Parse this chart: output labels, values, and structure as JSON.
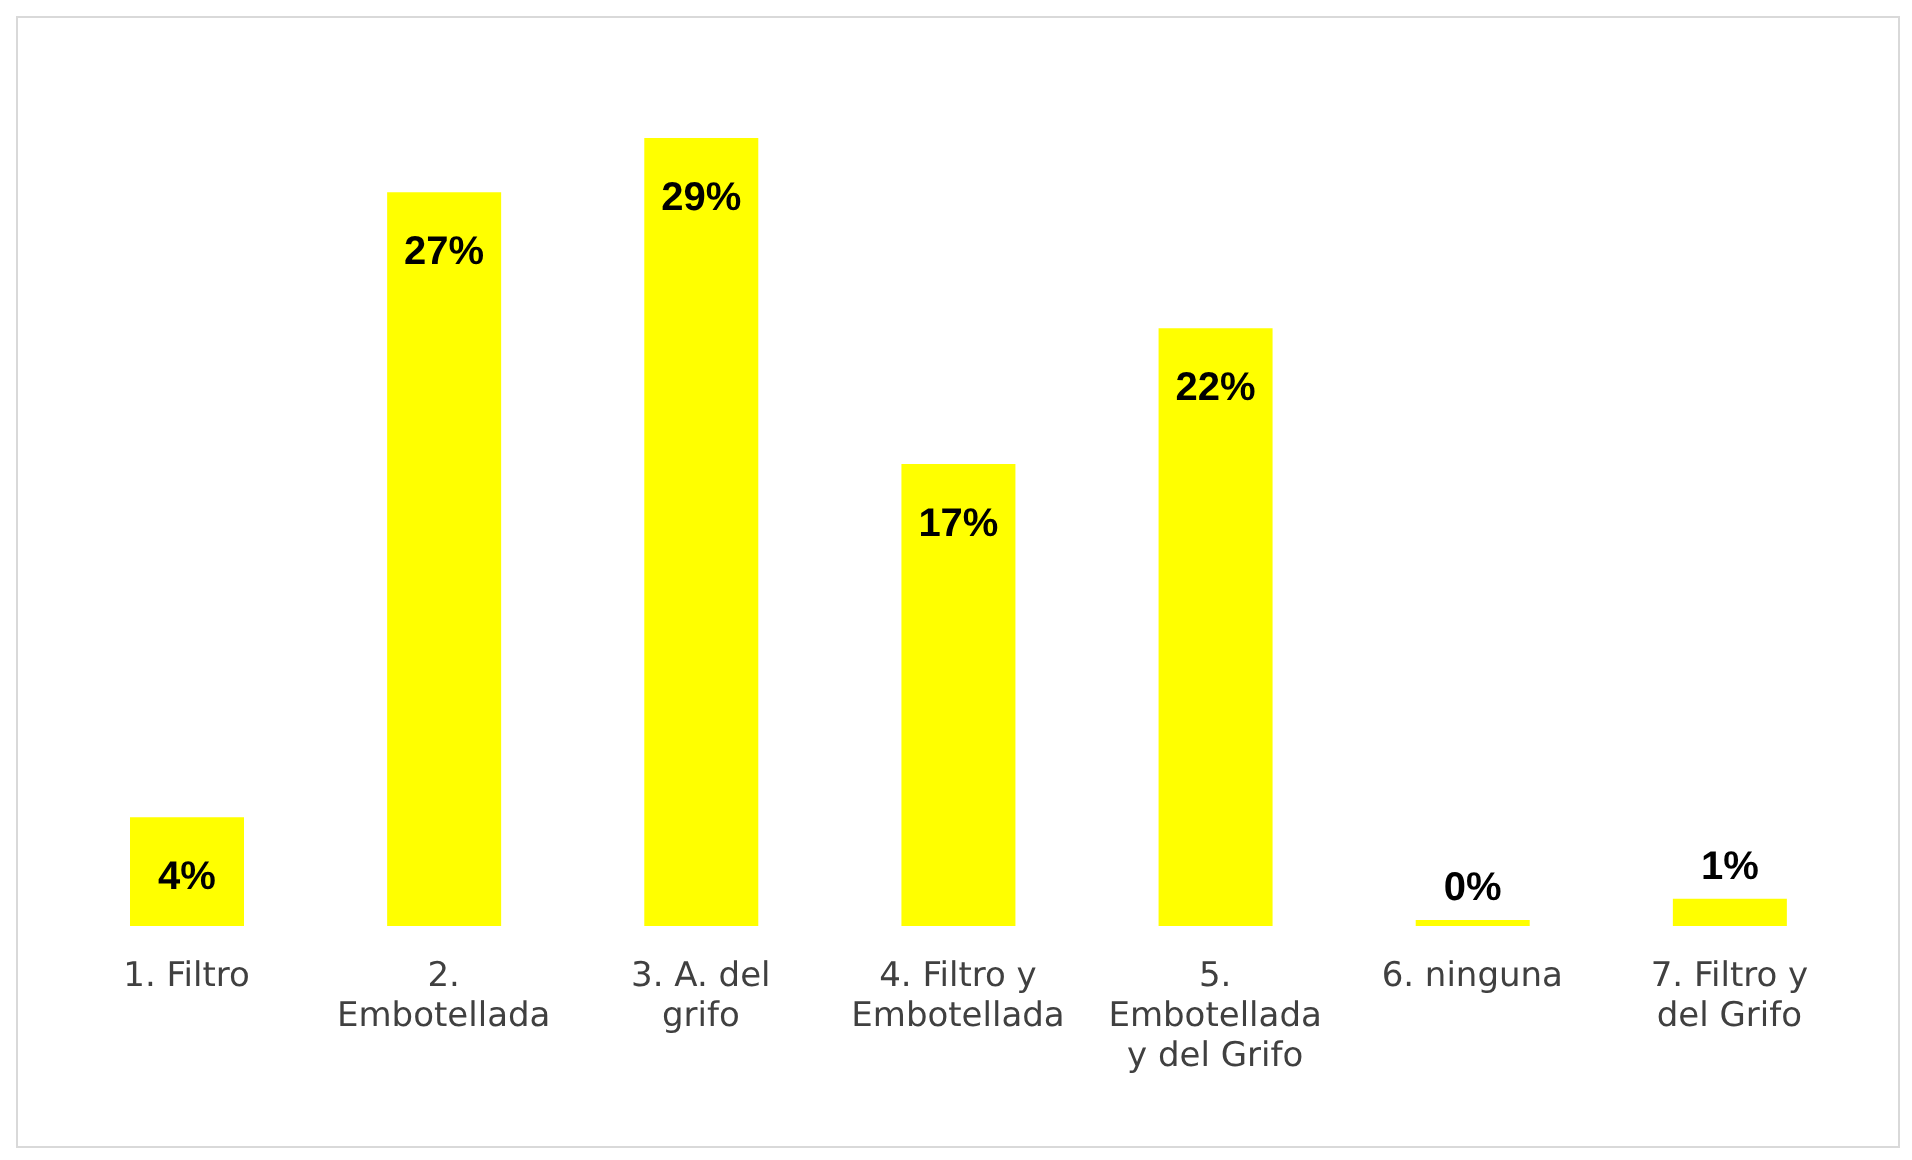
{
  "chart_data": {
    "type": "bar",
    "categories": [
      "1. Filtro",
      "2. Embotellada",
      "3. A. del grifo",
      "4. Filtro y Embotellada",
      "5. Embotellada y del Grifo",
      "6. ninguna",
      "7. Filtro y del Grifo"
    ],
    "values": [
      4,
      27,
      29,
      17,
      22,
      0,
      1
    ],
    "value_labels": [
      "4%",
      "27%",
      "29%",
      "17%",
      "22%",
      "0%",
      "1%"
    ],
    "color": "#ffff00",
    "grid": false,
    "legend": false
  }
}
